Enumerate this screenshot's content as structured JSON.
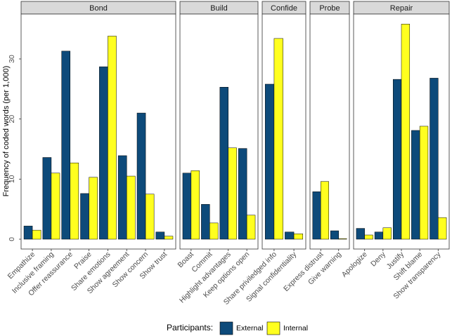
{
  "chart_data": {
    "type": "bar",
    "facet_by": "category",
    "ylabel": "Frequency of coded words (per 1,000)",
    "xlabel": "",
    "ylim": [
      0,
      38
    ],
    "yticks": [
      0,
      10,
      20,
      30
    ],
    "legend": {
      "title": "Participants:",
      "position": "bottom",
      "entries": [
        "External",
        "Internal"
      ]
    },
    "colors": {
      "External": "#0d4a7a",
      "Internal": "#ffff1f"
    },
    "panels": [
      {
        "name": "Bond",
        "categories": [
          "Empathize",
          "Inclusive framing",
          "Offer reassurance",
          "Praise",
          "Share emotions",
          "Show agreement",
          "Show concern",
          "Show trust"
        ],
        "series": [
          {
            "name": "External",
            "values": [
              2.2,
              13.6,
              31.3,
              7.6,
              28.7,
              13.9,
              21.0,
              1.2
            ]
          },
          {
            "name": "Internal",
            "values": [
              1.5,
              11.0,
              12.7,
              10.3,
              33.8,
              10.5,
              7.5,
              0.5
            ]
          }
        ]
      },
      {
        "name": "Build",
        "categories": [
          "Boast",
          "Commit",
          "Highlight advantages",
          "Keep options open"
        ],
        "series": [
          {
            "name": "External",
            "values": [
              11.0,
              5.8,
              25.3,
              15.1
            ]
          },
          {
            "name": "Internal",
            "values": [
              11.4,
              2.7,
              15.2,
              4.0
            ]
          }
        ]
      },
      {
        "name": "Confide",
        "categories": [
          "Share priviledged info",
          "Signal confidentiality"
        ],
        "series": [
          {
            "name": "External",
            "values": [
              25.8,
              1.2
            ]
          },
          {
            "name": "Internal",
            "values": [
              33.4,
              0.9
            ]
          }
        ]
      },
      {
        "name": "Probe",
        "categories": [
          "Express distrust",
          "Give warning"
        ],
        "series": [
          {
            "name": "External",
            "values": [
              7.9,
              1.4
            ]
          },
          {
            "name": "Internal",
            "values": [
              9.6,
              0.1
            ]
          }
        ]
      },
      {
        "name": "Repair",
        "categories": [
          "Apologize",
          "Deny",
          "Justify",
          "Shift blame",
          "Show transparency"
        ],
        "series": [
          {
            "name": "External",
            "values": [
              1.8,
              1.2,
              26.6,
              18.1,
              26.8
            ]
          },
          {
            "name": "Internal",
            "values": [
              0.7,
              1.9,
              35.8,
              18.8,
              3.6
            ]
          }
        ]
      }
    ]
  }
}
